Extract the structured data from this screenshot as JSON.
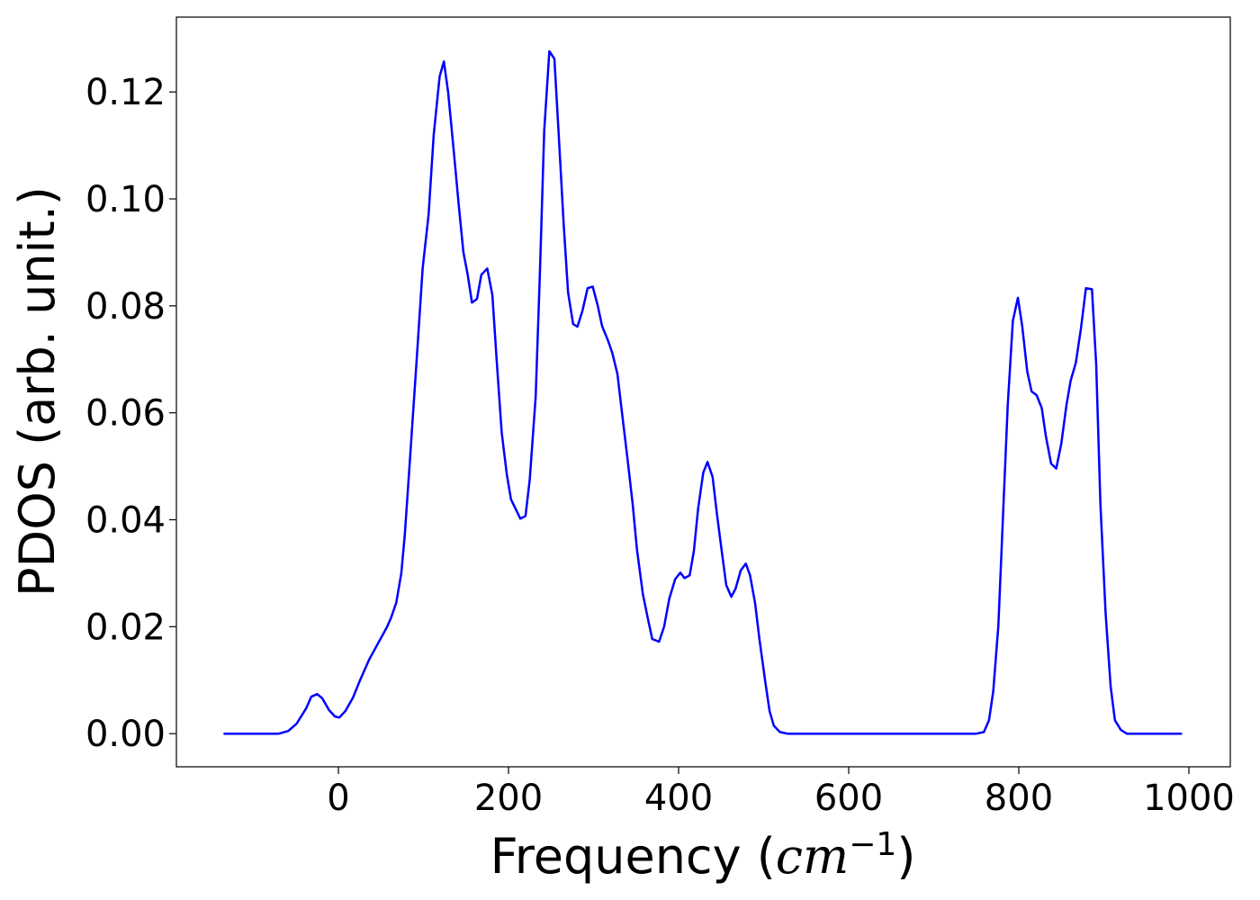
{
  "chart_data": {
    "type": "line",
    "x_label": [
      "Frequency (",
      "cm",
      "−1",
      ")"
    ],
    "y_label": "PDOS (arb. unit.)",
    "x": [
      -135,
      -100,
      -70,
      -59,
      -49,
      -38,
      -32,
      -25,
      -19,
      -11,
      -4,
      1,
      8,
      17,
      25,
      36,
      47,
      57,
      62,
      68,
      74,
      78,
      84,
      92,
      99,
      106,
      112,
      119,
      124,
      129,
      135,
      142,
      147,
      152,
      157,
      163,
      168,
      175,
      181,
      186,
      192,
      198,
      203,
      214,
      220,
      225,
      232,
      237,
      242,
      248,
      254,
      259,
      265,
      270,
      276,
      281,
      287,
      293,
      299,
      305,
      310,
      317,
      322,
      328,
      333,
      340,
      346,
      351,
      358,
      364,
      369,
      377,
      383,
      389,
      396,
      402,
      407,
      413,
      418,
      423,
      429,
      434,
      440,
      445,
      451,
      456,
      462,
      467,
      473,
      479,
      484,
      490,
      495,
      502,
      507,
      512,
      519,
      528,
      600,
      700,
      750,
      759,
      765,
      770,
      776,
      782,
      787,
      793,
      799,
      804,
      810,
      815,
      821,
      827,
      832,
      838,
      844,
      850,
      856,
      861,
      867,
      873,
      879,
      886,
      891,
      896,
      902,
      908,
      913,
      920,
      927,
      960,
      992
    ],
    "series": [
      {
        "name": "PDOS",
        "color": "#0000ff",
        "values": [
          0,
          0,
          0,
          0.0005,
          0.0019,
          0.0047,
          0.0069,
          0.0074,
          0.0066,
          0.0044,
          0.0032,
          0.003,
          0.0042,
          0.0067,
          0.0098,
          0.0138,
          0.017,
          0.0199,
          0.0217,
          0.0245,
          0.03,
          0.037,
          0.051,
          0.07,
          0.087,
          0.097,
          0.112,
          0.1229,
          0.1257,
          0.12,
          0.11,
          0.098,
          0.09,
          0.0858,
          0.0806,
          0.0813,
          0.0858,
          0.087,
          0.082,
          0.07,
          0.0564,
          0.0485,
          0.0438,
          0.0402,
          0.0407,
          0.0475,
          0.063,
          0.0867,
          0.1128,
          0.1276,
          0.1262,
          0.112,
          0.095,
          0.0825,
          0.0766,
          0.0761,
          0.0791,
          0.0833,
          0.0836,
          0.08,
          0.0762,
          0.0735,
          0.0712,
          0.0673,
          0.0606,
          0.0513,
          0.0429,
          0.0345,
          0.0261,
          0.0214,
          0.0177,
          0.0172,
          0.02,
          0.0252,
          0.0289,
          0.0301,
          0.0291,
          0.0296,
          0.0342,
          0.0421,
          0.0488,
          0.0508,
          0.048,
          0.0412,
          0.0338,
          0.0278,
          0.0256,
          0.0271,
          0.0305,
          0.0318,
          0.0296,
          0.0244,
          0.0177,
          0.0096,
          0.0042,
          0.0015,
          0.0003,
          0,
          0,
          0,
          0,
          0.0003,
          0.0025,
          0.0079,
          0.0202,
          0.0429,
          0.0614,
          0.0772,
          0.0815,
          0.0762,
          0.0677,
          0.064,
          0.0633,
          0.0609,
          0.0555,
          0.0505,
          0.0496,
          0.0542,
          0.0614,
          0.066,
          0.0693,
          0.0757,
          0.0833,
          0.0831,
          0.069,
          0.0429,
          0.0227,
          0.0089,
          0.0025,
          0.0007,
          0,
          0,
          0
        ]
      }
    ],
    "xlim": [
      -190.5,
      1048.7
    ],
    "ylim": [
      -0.0062,
      0.134
    ],
    "xticks": [
      0,
      200,
      400,
      600,
      800,
      1000
    ],
    "yticks": [
      {
        "value": 0,
        "label": "0.00"
      },
      {
        "value": 0.02,
        "label": "0.02"
      },
      {
        "value": 0.04,
        "label": "0.04"
      },
      {
        "value": 0.06,
        "label": "0.06"
      },
      {
        "value": 0.08,
        "label": "0.08"
      },
      {
        "value": 0.1,
        "label": "0.10"
      },
      {
        "value": 0.12,
        "label": "0.12"
      }
    ],
    "grid": false
  }
}
